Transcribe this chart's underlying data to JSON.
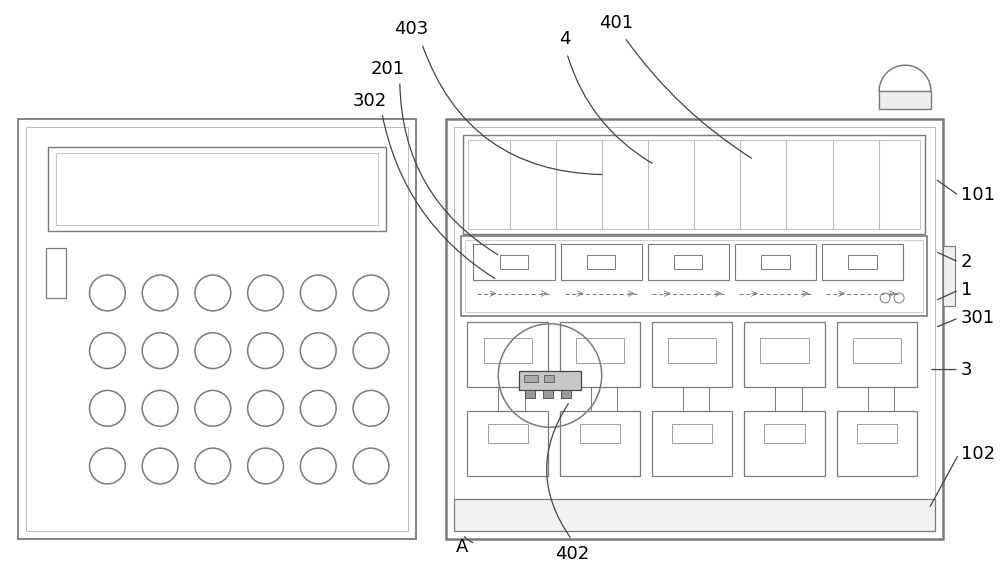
{
  "bg_color": "#ffffff",
  "line_color": "#7a7a7a",
  "dark_line": "#444444",
  "light_line": "#bbbbbb",
  "fig_w": 10.0,
  "fig_h": 5.71,
  "dpi": 100
}
